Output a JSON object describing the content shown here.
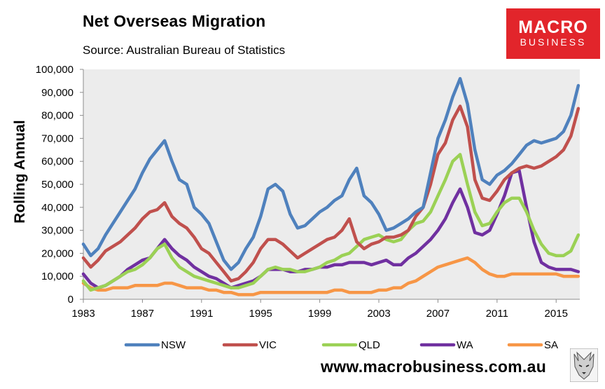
{
  "header": {
    "title": "Net Overseas Migration",
    "subtitle": "Source: Australian Bureau of Statistics",
    "logo_line1": "MACRO",
    "logo_line2": "BUSINESS"
  },
  "footer": {
    "url": "www.macrobusiness.com.au"
  },
  "colors": {
    "NSW": "#4f81bd",
    "VIC": "#c0504d",
    "QLD": "#9bd155",
    "WA": "#7030a0",
    "SA": "#f79646",
    "plot_bg": "#ececec",
    "logo_bg": "#e2252b"
  },
  "chart_data": {
    "type": "line",
    "ylabel": "Rolling Annual",
    "xlabel": "",
    "ylim": [
      0,
      100000
    ],
    "xlim": [
      1983,
      2016.6
    ],
    "y_ticks": [
      "0",
      "10,000",
      "20,000",
      "30,000",
      "40,000",
      "50,000",
      "60,000",
      "70,000",
      "80,000",
      "90,000",
      "100,000"
    ],
    "x_ticks": [
      "1983",
      "1987",
      "1991",
      "1995",
      "1999",
      "2003",
      "2007",
      "2011",
      "2015"
    ],
    "grid": false,
    "legend": "bottom",
    "x": [
      1983,
      1983.5,
      1984,
      1984.5,
      1985,
      1985.5,
      1986,
      1986.5,
      1987,
      1987.5,
      1988,
      1988.5,
      1989,
      1989.5,
      1990,
      1990.5,
      1991,
      1991.5,
      1992,
      1992.5,
      1993,
      1993.5,
      1994,
      1994.5,
      1995,
      1995.5,
      1996,
      1996.5,
      1997,
      1997.5,
      1998,
      1998.5,
      1999,
      1999.5,
      2000,
      2000.5,
      2001,
      2001.5,
      2002,
      2002.5,
      2003,
      2003.5,
      2004,
      2004.5,
      2005,
      2005.5,
      2006,
      2006.5,
      2007,
      2007.5,
      2008,
      2008.5,
      2009,
      2009.5,
      2010,
      2010.5,
      2011,
      2011.5,
      2012,
      2012.5,
      2013,
      2013.5,
      2014,
      2014.5,
      2015,
      2015.5,
      2016,
      2016.5
    ],
    "series": [
      {
        "name": "NSW",
        "values": [
          24000,
          19000,
          22000,
          28000,
          33000,
          38000,
          43000,
          48000,
          55000,
          61000,
          65000,
          69000,
          60000,
          52000,
          50000,
          40000,
          37000,
          33000,
          25000,
          17000,
          13000,
          16000,
          22000,
          27000,
          36000,
          48000,
          50000,
          47000,
          37000,
          31000,
          32000,
          35000,
          38000,
          40000,
          43000,
          45000,
          52000,
          57000,
          45000,
          42000,
          37000,
          30000,
          31000,
          33000,
          35000,
          38000,
          40000,
          55000,
          70000,
          78000,
          88000,
          96000,
          85000,
          65000,
          52000,
          50000,
          54000,
          56000,
          59000,
          63000,
          67000,
          69000,
          68000,
          69000,
          70000,
          73000,
          80000,
          93000
        ]
      },
      {
        "name": "VIC",
        "values": [
          18000,
          14000,
          17000,
          21000,
          23000,
          25000,
          28000,
          31000,
          35000,
          38000,
          39000,
          42000,
          36000,
          33000,
          31000,
          27000,
          22000,
          20000,
          16000,
          12000,
          8000,
          9000,
          12000,
          16000,
          22000,
          26000,
          26000,
          24000,
          21000,
          18000,
          20000,
          22000,
          24000,
          26000,
          27000,
          30000,
          35000,
          25000,
          22000,
          24000,
          25000,
          27000,
          27000,
          28000,
          30000,
          36000,
          40000,
          50000,
          63000,
          68000,
          78000,
          84000,
          75000,
          52000,
          44000,
          43000,
          47000,
          52000,
          55000,
          57000,
          58000,
          57000,
          58000,
          60000,
          62000,
          65000,
          71000,
          83000
        ]
      },
      {
        "name": "QLD",
        "values": [
          8000,
          4000,
          5000,
          6000,
          8000,
          10000,
          12000,
          13000,
          15000,
          18000,
          22000,
          24000,
          18000,
          14000,
          12000,
          10000,
          9000,
          8000,
          7000,
          6000,
          5000,
          5000,
          6000,
          7000,
          10000,
          13000,
          14000,
          13000,
          13000,
          12000,
          12000,
          13000,
          14000,
          16000,
          17000,
          19000,
          20000,
          23000,
          26000,
          27000,
          28000,
          26000,
          25000,
          26000,
          30000,
          33000,
          34000,
          38000,
          45000,
          52000,
          60000,
          63000,
          50000,
          38000,
          32000,
          33000,
          38000,
          42000,
          44000,
          44000,
          38000,
          30000,
          24000,
          20000,
          19000,
          19000,
          21000,
          28000
        ]
      },
      {
        "name": "WA",
        "values": [
          11000,
          7000,
          5000,
          6000,
          8000,
          10000,
          13000,
          15000,
          17000,
          18000,
          22000,
          26000,
          22000,
          19000,
          17000,
          14000,
          12000,
          10000,
          9000,
          7000,
          5000,
          6000,
          7000,
          8000,
          10000,
          13000,
          13000,
          13000,
          12000,
          12000,
          13000,
          13000,
          14000,
          14000,
          15000,
          15000,
          16000,
          16000,
          16000,
          15000,
          16000,
          17000,
          15000,
          15000,
          18000,
          20000,
          23000,
          26000,
          30000,
          35000,
          42000,
          48000,
          40000,
          29000,
          28000,
          30000,
          37000,
          45000,
          55000,
          56000,
          40000,
          25000,
          16000,
          14000,
          13000,
          13000,
          13000,
          12000
        ]
      },
      {
        "name": "SA",
        "values": [
          7000,
          5000,
          4000,
          4000,
          5000,
          5000,
          5000,
          6000,
          6000,
          6000,
          6000,
          7000,
          7000,
          6000,
          5000,
          5000,
          5000,
          4000,
          4000,
          3000,
          3000,
          2000,
          2000,
          2000,
          3000,
          3000,
          3000,
          3000,
          3000,
          3000,
          3000,
          3000,
          3000,
          3000,
          4000,
          4000,
          3000,
          3000,
          3000,
          3000,
          4000,
          4000,
          5000,
          5000,
          7000,
          8000,
          10000,
          12000,
          14000,
          15000,
          16000,
          17000,
          18000,
          16000,
          13000,
          11000,
          10000,
          10000,
          11000,
          11000,
          11000,
          11000,
          11000,
          11000,
          11000,
          10000,
          10000,
          10000
        ]
      }
    ]
  }
}
